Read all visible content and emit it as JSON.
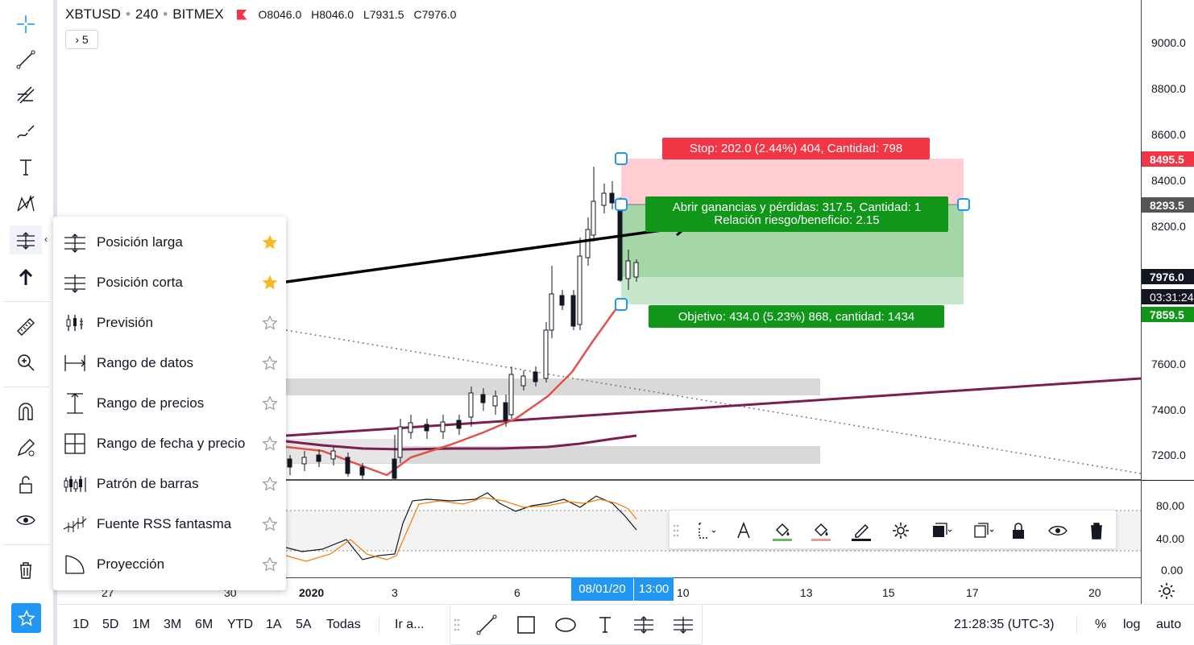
{
  "header": {
    "symbol": "XBTUSD",
    "interval": "240",
    "exchange": "BITMEX",
    "open": "O8046.0",
    "high": "H8046.0",
    "low": "L7931.5",
    "close": "C7976.0",
    "indicators_toggle": "› 5"
  },
  "price_axis": {
    "ticks": [
      "9000.0",
      "8800.0",
      "8600.0",
      "8400.0",
      "8200.0",
      "7600.0",
      "7400.0",
      "7200.0",
      "80.00",
      "40.00",
      "0.00"
    ],
    "labels": {
      "stop": "8495.5",
      "entry": "8293.5",
      "last": "7976.0",
      "countdown": "03:31:24",
      "target": "7859.5"
    }
  },
  "time_axis": {
    "labels": [
      "27",
      "30",
      "2020",
      "3",
      "6",
      "10",
      "13",
      "15",
      "17",
      "20"
    ],
    "highlight_date": "08/01/20",
    "highlight_time": "13:00"
  },
  "position": {
    "stop_label": "Stop: 202.0 (2.44%) 404, Cantidad: 798",
    "pnl_label": "Abrir ganancias y pérdidas: 317.5, Cantidad: 1",
    "rr_label": "Relación riesgo/beneficio: 2.15",
    "target_label": "Objetivo: 434.0 (5.23%) 868, cantidad: 1434"
  },
  "menu": {
    "items": [
      {
        "label": "Posición larga",
        "icon": "long-position-icon",
        "favorite": true
      },
      {
        "label": "Posición corta",
        "icon": "short-position-icon",
        "favorite": true
      },
      {
        "label": "Previsión",
        "icon": "forecast-icon",
        "favorite": false
      },
      {
        "label": "Rango de datos",
        "icon": "date-range-icon",
        "favorite": false
      },
      {
        "label": "Rango de precios",
        "icon": "price-range-icon",
        "favorite": false
      },
      {
        "label": "Rango de fecha y precio",
        "icon": "date-price-range-icon",
        "favorite": false
      },
      {
        "label": "Patrón de barras",
        "icon": "bars-pattern-icon",
        "favorite": false
      },
      {
        "label": "Fuente RSS fantasma",
        "icon": "ghost-feed-icon",
        "favorite": false
      },
      {
        "label": "Proyección",
        "icon": "projection-icon",
        "favorite": false
      }
    ]
  },
  "bottom_bar": {
    "ranges": [
      "1D",
      "5D",
      "1M",
      "3M",
      "6M",
      "YTD",
      "1A",
      "5A",
      "Todas"
    ],
    "goto": "Ir a...",
    "clock": "21:28:35 (UTC-3)",
    "percent": "%",
    "log": "log",
    "auto": "auto"
  },
  "colors": {
    "accent": "#2196f3",
    "stop_red": "#f23645",
    "target_green": "#089981",
    "green_label": "#109618",
    "ema_red": "#e0524a",
    "trend_purple": "#7b1f4f"
  }
}
